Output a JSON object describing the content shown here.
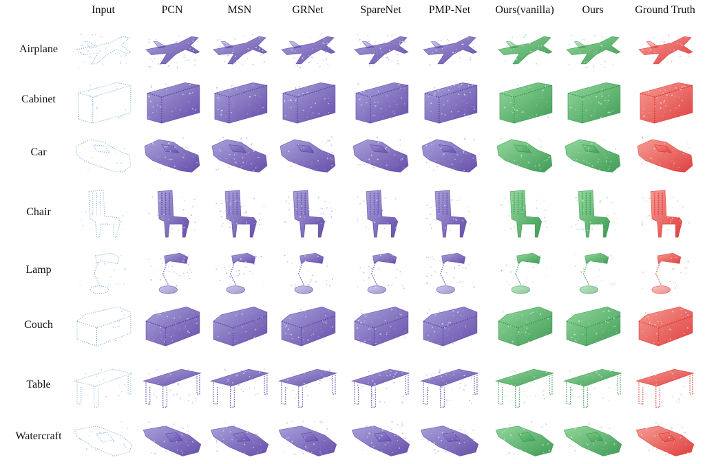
{
  "figure": {
    "columns": [
      {
        "label": "Input",
        "palette": "input"
      },
      {
        "label": "PCN",
        "palette": "purple"
      },
      {
        "label": "MSN",
        "palette": "purple"
      },
      {
        "label": "GRNet",
        "palette": "purple"
      },
      {
        "label": "SpareNet",
        "palette": "purple"
      },
      {
        "label": "PMP-Net",
        "palette": "purple"
      },
      {
        "label": "Ours(vanilla)",
        "palette": "green"
      },
      {
        "label": "Ours",
        "palette": "green"
      },
      {
        "label": "Ground Truth",
        "palette": "red"
      }
    ],
    "rows": [
      {
        "label": "Airplane",
        "shape": "airplane"
      },
      {
        "label": "Cabinet",
        "shape": "cabinet"
      },
      {
        "label": "Car",
        "shape": "car"
      },
      {
        "label": "Chair",
        "shape": "chair"
      },
      {
        "label": "Lamp",
        "shape": "lamp"
      },
      {
        "label": "Couch",
        "shape": "couch"
      },
      {
        "label": "Table",
        "shape": "table"
      },
      {
        "label": "Watercraft",
        "shape": "watercraft"
      }
    ],
    "colors": {
      "input_light": "#bcd6ec",
      "input_dark": "#5a93c6",
      "purple_light": "#9a90d4",
      "purple_dark": "#4a2f9a",
      "green_light": "#7fd08a",
      "green_dark": "#1f8a38",
      "red_light": "#f58a80",
      "red_dark": "#d81e1e"
    }
  }
}
